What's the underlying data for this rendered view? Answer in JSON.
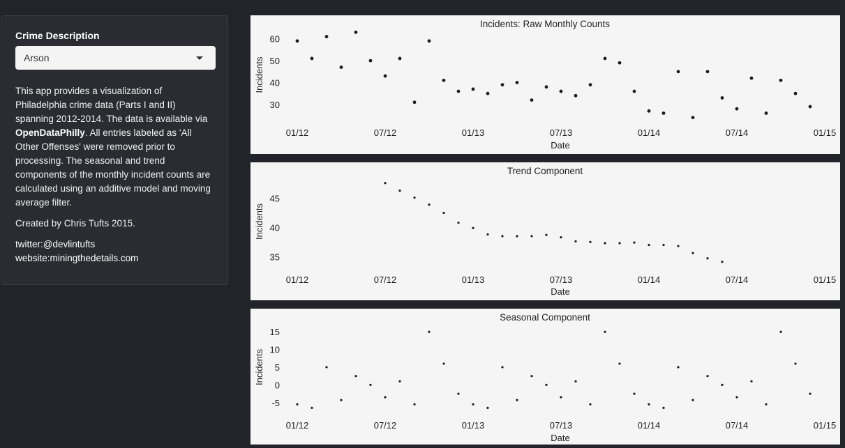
{
  "sidebar": {
    "select_label": "Crime Description",
    "select_value": "Arson",
    "desc_part1": "This app provides a visualization of Philadelphia crime data (Parts I and II) spanning 2012-2014. The data is available via ",
    "desc_bold": "OpenDataPhilly",
    "desc_part2": ". All entries labeled as 'All Other Offenses' were removed prior to processing. The seasonal and trend components of the monthly incident counts are calculated using an additive model and moving average filter.",
    "credit": "Created by Chris Tufts 2015.",
    "twitter": "twitter:@devlintufts",
    "website": "website:miningthedetails.com"
  },
  "chart_data": [
    {
      "type": "scatter",
      "title": "Incidents: Raw Monthly Counts",
      "xlabel": "Date",
      "ylabel": "Incidents",
      "x_ticks": [
        "01/12",
        "07/12",
        "01/13",
        "07/13",
        "01/14",
        "07/14",
        "01/15"
      ],
      "y_ticks": [
        30,
        40,
        50,
        60
      ],
      "ylim": [
        22,
        65
      ],
      "x": [
        "2012-01",
        "2012-02",
        "2012-03",
        "2012-04",
        "2012-05",
        "2012-06",
        "2012-07",
        "2012-08",
        "2012-09",
        "2012-10",
        "2012-11",
        "2012-12",
        "2013-01",
        "2013-02",
        "2013-03",
        "2013-04",
        "2013-05",
        "2013-06",
        "2013-07",
        "2013-08",
        "2013-09",
        "2013-10",
        "2013-11",
        "2013-12",
        "2014-01",
        "2014-02",
        "2014-03",
        "2014-04",
        "2014-05",
        "2014-06",
        "2014-07",
        "2014-08",
        "2014-09",
        "2014-10",
        "2014-11",
        "2014-12"
      ],
      "values": [
        59,
        51,
        61,
        47,
        63,
        50,
        43,
        51,
        31,
        59,
        41,
        36,
        37,
        35,
        39,
        40,
        32,
        38,
        36,
        34,
        39,
        51,
        49,
        36,
        27,
        26,
        45,
        24,
        45,
        33,
        28,
        42,
        26,
        41,
        35,
        29
      ]
    },
    {
      "type": "scatter",
      "title": "Trend Component",
      "xlabel": "Date",
      "ylabel": "Incidents",
      "x_ticks": [
        "01/12",
        "07/12",
        "01/13",
        "07/13",
        "01/14",
        "07/14",
        "01/15"
      ],
      "y_ticks": [
        35,
        40,
        45
      ],
      "ylim": [
        33,
        49
      ],
      "x": [
        "2012-07",
        "2012-08",
        "2012-09",
        "2012-10",
        "2012-11",
        "2012-12",
        "2013-01",
        "2013-02",
        "2013-03",
        "2013-04",
        "2013-05",
        "2013-06",
        "2013-07",
        "2013-08",
        "2013-09",
        "2013-10",
        "2013-11",
        "2013-12",
        "2014-01",
        "2014-02",
        "2014-03",
        "2014-04",
        "2014-05",
        "2014-06"
      ],
      "values": [
        47.6,
        46.3,
        45.1,
        43.9,
        42.5,
        40.8,
        39.9,
        38.8,
        38.5,
        38.5,
        38.5,
        38.7,
        38.3,
        37.6,
        37.5,
        37.3,
        37.3,
        37.4,
        37.0,
        37.0,
        36.8,
        35.6,
        34.7,
        34.1
      ]
    },
    {
      "type": "scatter",
      "title": "Seasonal Component",
      "xlabel": "Date",
      "ylabel": "Incidents",
      "x_ticks": [
        "01/12",
        "07/12",
        "01/13",
        "07/13",
        "01/14",
        "07/14",
        "01/15"
      ],
      "y_ticks": [
        -5,
        0,
        5,
        10,
        15
      ],
      "ylim": [
        -8,
        18
      ],
      "x": [
        "2012-01",
        "2012-02",
        "2012-03",
        "2012-04",
        "2012-05",
        "2012-06",
        "2012-07",
        "2012-08",
        "2012-09",
        "2012-10",
        "2012-11",
        "2012-12",
        "2013-01",
        "2013-02",
        "2013-03",
        "2013-04",
        "2013-05",
        "2013-06",
        "2013-07",
        "2013-08",
        "2013-09",
        "2013-10",
        "2013-11",
        "2013-12",
        "2014-01",
        "2014-02",
        "2014-03",
        "2014-04",
        "2014-05",
        "2014-06",
        "2014-07",
        "2014-08",
        "2014-09",
        "2014-10",
        "2014-11",
        "2014-12"
      ],
      "values": [
        -5.5,
        -6.5,
        5.0,
        -4.3,
        2.5,
        0.0,
        -3.5,
        1.0,
        -5.5,
        15.0,
        6.0,
        -2.5,
        -5.5,
        -6.5,
        5.0,
        -4.3,
        2.5,
        0.0,
        -3.5,
        1.0,
        -5.5,
        15.0,
        6.0,
        -2.5,
        -5.5,
        -6.5,
        5.0,
        -4.3,
        2.5,
        0.0,
        -3.5,
        1.0,
        -5.5,
        15.0,
        6.0,
        -2.5
      ]
    }
  ]
}
